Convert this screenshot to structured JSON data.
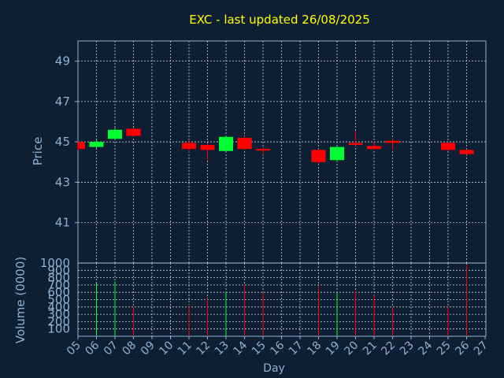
{
  "chart_data": {
    "type": "candlestick",
    "title": "EXC - last updated 26/08/2025",
    "xlabel": "Day",
    "ylabel": "Price",
    "volume_label": "Volume (0000)",
    "price_ylim": [
      39,
      50
    ],
    "price_yticks": [
      "41",
      "43",
      "45",
      "47",
      "49"
    ],
    "volume_ylim": [
      0,
      1000
    ],
    "volume_yticks": [
      "100",
      "200",
      "300",
      "400",
      "500",
      "600",
      "700",
      "800",
      "900",
      "1000"
    ],
    "x_labels": [
      "05",
      "06",
      "07",
      "08",
      "09",
      "10",
      "11",
      "12",
      "13",
      "14",
      "15",
      "16",
      "17",
      "18",
      "19",
      "20",
      "21",
      "22",
      "23",
      "24",
      "25",
      "26",
      "27"
    ],
    "grid": true,
    "candles": [
      {
        "day": "05",
        "open": 45.0,
        "close": 44.65,
        "high": 45.05,
        "low": 44.6,
        "volume": 0
      },
      {
        "day": "06",
        "open": 44.75,
        "close": 45.0,
        "high": 45.1,
        "low": 44.7,
        "volume": 720
      },
      {
        "day": "07",
        "open": 45.15,
        "close": 45.6,
        "high": 45.7,
        "low": 45.1,
        "volume": 750
      },
      {
        "day": "08",
        "open": 45.65,
        "close": 45.3,
        "high": 45.7,
        "low": 45.25,
        "volume": 400
      },
      {
        "day": "11",
        "open": 44.95,
        "close": 44.65,
        "high": 45.1,
        "low": 44.5,
        "volume": 430
      },
      {
        "day": "12",
        "open": 44.85,
        "close": 44.6,
        "high": 44.9,
        "low": 44.1,
        "volume": 520
      },
      {
        "day": "13",
        "open": 44.55,
        "close": 45.25,
        "high": 45.3,
        "low": 44.5,
        "volume": 610
      },
      {
        "day": "14",
        "open": 45.2,
        "close": 44.65,
        "high": 45.3,
        "low": 44.6,
        "volume": 700
      },
      {
        "day": "15",
        "open": 44.65,
        "close": 44.6,
        "high": 44.75,
        "low": 44.35,
        "volume": 600
      },
      {
        "day": "18",
        "open": 44.6,
        "close": 44.0,
        "high": 44.65,
        "low": 43.9,
        "volume": 690
      },
      {
        "day": "19",
        "open": 44.1,
        "close": 44.75,
        "high": 44.8,
        "low": 44.0,
        "volume": 600
      },
      {
        "day": "20",
        "open": 44.95,
        "close": 44.85,
        "high": 45.55,
        "low": 44.8,
        "volume": 620
      },
      {
        "day": "21",
        "open": 44.8,
        "close": 44.65,
        "high": 45.0,
        "low": 44.6,
        "volume": 560
      },
      {
        "day": "22",
        "open": 45.05,
        "close": 44.95,
        "high": 45.15,
        "low": 44.6,
        "volume": 400
      },
      {
        "day": "25",
        "open": 44.95,
        "close": 44.6,
        "high": 45.0,
        "low": 44.55,
        "volume": 400
      },
      {
        "day": "26",
        "open": 44.6,
        "close": 44.4,
        "high": 44.65,
        "low": 44.35,
        "volume": 970
      }
    ],
    "colors": {
      "background": "#0f1f33",
      "axis": "#8eb1d4",
      "grid": "#c4cfda",
      "text": "#8eb1d4",
      "title": "#ffff00",
      "up": "#00ff33",
      "down": "#ff0000"
    }
  }
}
